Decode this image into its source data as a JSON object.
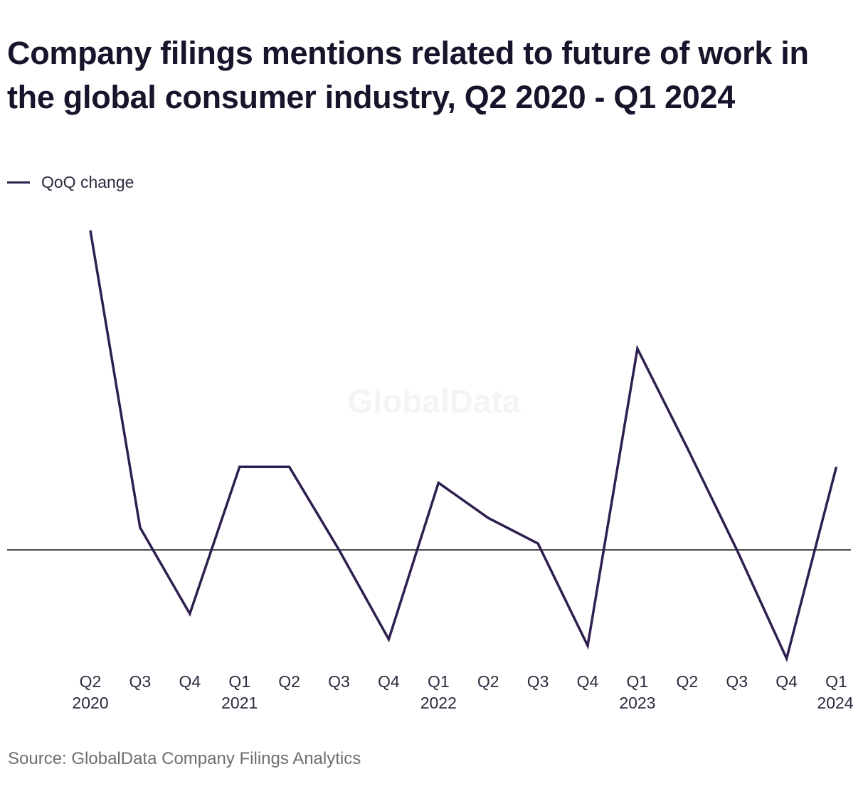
{
  "title": "Company filings mentions related to future of work in the global consumer industry, Q2 2020 - Q1 2024",
  "legend": {
    "label": "QoQ change"
  },
  "source": "Source: GlobalData Company Filings Analytics",
  "watermark": "GlobalData",
  "colors": {
    "line": "#2e1f4f",
    "zero_line": "#111111",
    "text": "#1c1b33"
  },
  "chart_data": {
    "type": "line",
    "title": "Company filings mentions related to future of work in the global consumer industry, Q2 2020 - Q1 2024",
    "xlabel": "",
    "ylabel": "",
    "y_axis_labels_shown": false,
    "grid": false,
    "legend_position": "top-left",
    "zero_line": true,
    "categories": [
      "Q2",
      "Q3",
      "Q4",
      "Q1",
      "Q2",
      "Q3",
      "Q4",
      "Q1",
      "Q2",
      "Q3",
      "Q4",
      "Q1",
      "Q2",
      "Q3",
      "Q4",
      "Q1"
    ],
    "year_labels": [
      "2020",
      "",
      "",
      "2021",
      "",
      "",
      "",
      "2022",
      "",
      "",
      "",
      "2023",
      "",
      "",
      "",
      "2024"
    ],
    "series": [
      {
        "name": "QoQ change",
        "values": [
          100,
          7,
          -20,
          26,
          26,
          0,
          -28,
          21,
          10,
          2,
          -30,
          63,
          32,
          0,
          -34,
          26
        ]
      }
    ],
    "ylim": [
      -34,
      100
    ]
  }
}
